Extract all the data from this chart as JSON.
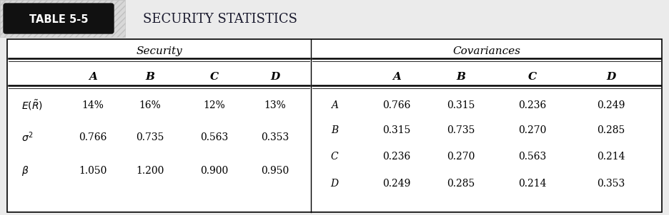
{
  "title_label": "TABLE 5-5",
  "title_text": "SECURITY STATISTICS",
  "security_header": "Security",
  "covariances_header": "Covariances",
  "col_headers": [
    "A",
    "B",
    "C",
    "D"
  ],
  "security_row_labels_latex": [
    "$E(\\tilde{R})$",
    "$\\sigma^2$",
    "$\\beta$"
  ],
  "security_data": [
    [
      "14%",
      "16%",
      "12%",
      "13%"
    ],
    [
      "0.766",
      "0.735",
      "0.563",
      "0.353"
    ],
    [
      "1.050",
      "1.200",
      "0.900",
      "0.950"
    ]
  ],
  "cov_row_labels": [
    "A",
    "B",
    "C",
    "D"
  ],
  "covariance_data": [
    [
      "0.766",
      "0.315",
      "0.236",
      "0.249"
    ],
    [
      "0.315",
      "0.735",
      "0.270",
      "0.285"
    ],
    [
      "0.236",
      "0.270",
      "0.563",
      "0.214"
    ],
    [
      "0.249",
      "0.285",
      "0.214",
      "0.353"
    ]
  ],
  "bg_color": "#ebebeb",
  "table_bg": "#ffffff",
  "border_color": "#000000",
  "title_box_color": "#111111",
  "title_text_color": "#ffffff",
  "title_heading_color": "#1a1a2e",
  "hatch_bg": "#d8d8d8"
}
